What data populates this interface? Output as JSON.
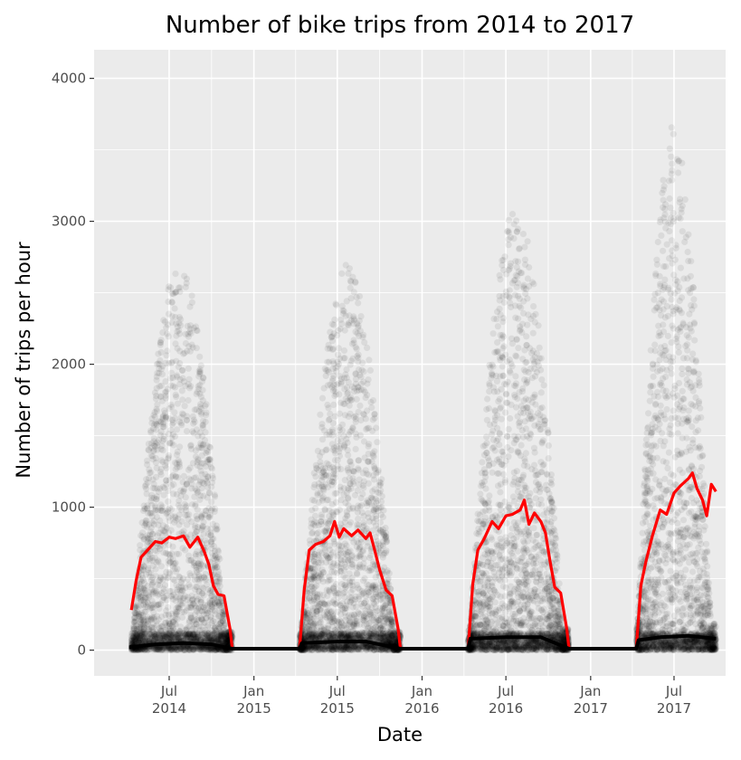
{
  "chart_data": {
    "type": "scatter",
    "title": "Number of bike trips from 2014 to 2017",
    "xlabel": "Date",
    "ylabel": "Number of trips per hour",
    "ylim": [
      -180,
      4200
    ],
    "xlim": [
      "2014-01-19",
      "2017-10-21"
    ],
    "y_ticks": [
      "0",
      "1000",
      "2000",
      "3000",
      "4000"
    ],
    "y_tick_values": [
      0,
      1000,
      2000,
      3000,
      4000
    ],
    "x_ticks": [
      {
        "date": "2014-07-01",
        "line1": "Jul",
        "line2": "2014"
      },
      {
        "date": "2015-01-01",
        "line1": "Jan",
        "line2": "2015"
      },
      {
        "date": "2015-07-01",
        "line1": "Jul",
        "line2": "2015"
      },
      {
        "date": "2016-01-01",
        "line1": "Jan",
        "line2": "2016"
      },
      {
        "date": "2016-07-01",
        "line1": "Jul",
        "line2": "2016"
      },
      {
        "date": "2017-01-01",
        "line1": "Jan",
        "line2": "2017"
      },
      {
        "date": "2017-07-01",
        "line1": "Jul",
        "line2": "2017"
      }
    ],
    "grid": true,
    "seasons": [
      {
        "start": "2014-04-10",
        "end": "2014-11-15",
        "peak": 2700,
        "max": 2860,
        "mean": 780
      },
      {
        "start": "2015-04-10",
        "end": "2015-11-15",
        "peak": 2700,
        "max": 2830,
        "mean": 820
      },
      {
        "start": "2016-04-10",
        "end": "2016-11-15",
        "peak": 3100,
        "max": 3200,
        "mean": 930
      },
      {
        "start": "2017-04-10",
        "end": "2017-09-30",
        "peak": 3700,
        "max": 3930,
        "mean": 1120
      }
    ],
    "series": [
      {
        "type": "line",
        "color": "#ff0000",
        "points": [
          [
            "2014-04-10",
            280
          ],
          [
            "2014-04-20",
            480
          ],
          [
            "2014-05-01",
            650
          ],
          [
            "2014-05-15",
            700
          ],
          [
            "2014-06-01",
            760
          ],
          [
            "2014-06-15",
            750
          ],
          [
            "2014-07-01",
            790
          ],
          [
            "2014-07-15",
            780
          ],
          [
            "2014-08-01",
            800
          ],
          [
            "2014-08-15",
            720
          ],
          [
            "2014-09-01",
            790
          ],
          [
            "2014-09-15",
            690
          ],
          [
            "2014-09-25",
            600
          ],
          [
            "2014-10-05",
            450
          ],
          [
            "2014-10-15",
            390
          ],
          [
            "2014-10-28",
            380
          ],
          [
            "2014-11-10",
            150
          ],
          [
            "2014-11-15",
            10
          ],
          [
            "2015-04-10",
            10
          ],
          [
            "2015-04-20",
            420
          ],
          [
            "2015-05-01",
            700
          ],
          [
            "2015-05-15",
            740
          ],
          [
            "2015-06-01",
            760
          ],
          [
            "2015-06-15",
            800
          ],
          [
            "2015-06-25",
            900
          ],
          [
            "2015-07-05",
            790
          ],
          [
            "2015-07-15",
            850
          ],
          [
            "2015-08-01",
            800
          ],
          [
            "2015-08-15",
            840
          ],
          [
            "2015-09-01",
            780
          ],
          [
            "2015-09-10",
            820
          ],
          [
            "2015-09-20",
            700
          ],
          [
            "2015-10-01",
            560
          ],
          [
            "2015-10-15",
            420
          ],
          [
            "2015-10-28",
            380
          ],
          [
            "2015-11-10",
            150
          ],
          [
            "2015-11-15",
            10
          ],
          [
            "2016-04-10",
            10
          ],
          [
            "2016-04-20",
            460
          ],
          [
            "2016-05-01",
            700
          ],
          [
            "2016-05-15",
            780
          ],
          [
            "2016-06-01",
            900
          ],
          [
            "2016-06-15",
            850
          ],
          [
            "2016-07-01",
            940
          ],
          [
            "2016-07-15",
            950
          ],
          [
            "2016-08-01",
            980
          ],
          [
            "2016-08-10",
            1050
          ],
          [
            "2016-08-20",
            880
          ],
          [
            "2016-09-01",
            960
          ],
          [
            "2016-09-15",
            900
          ],
          [
            "2016-09-25",
            820
          ],
          [
            "2016-10-05",
            620
          ],
          [
            "2016-10-15",
            440
          ],
          [
            "2016-10-28",
            400
          ],
          [
            "2016-11-10",
            150
          ],
          [
            "2016-11-15",
            10
          ],
          [
            "2017-04-10",
            10
          ],
          [
            "2017-04-20",
            450
          ],
          [
            "2017-05-01",
            620
          ],
          [
            "2017-05-15",
            800
          ],
          [
            "2017-06-01",
            980
          ],
          [
            "2017-06-15",
            950
          ],
          [
            "2017-07-01",
            1100
          ],
          [
            "2017-07-15",
            1150
          ],
          [
            "2017-08-01",
            1200
          ],
          [
            "2017-08-10",
            1240
          ],
          [
            "2017-08-20",
            1130
          ],
          [
            "2017-09-01",
            1050
          ],
          [
            "2017-09-10",
            940
          ],
          [
            "2017-09-20",
            1160
          ],
          [
            "2017-09-30",
            1110
          ]
        ]
      },
      {
        "type": "line",
        "color": "#000000",
        "points": [
          [
            "2014-04-05",
            20
          ],
          [
            "2014-06-01",
            40
          ],
          [
            "2014-08-01",
            50
          ],
          [
            "2014-10-01",
            40
          ],
          [
            "2014-11-15",
            10
          ],
          [
            "2015-04-10",
            10
          ],
          [
            "2015-04-15",
            50
          ],
          [
            "2015-07-01",
            60
          ],
          [
            "2015-09-01",
            60
          ],
          [
            "2015-11-15",
            10
          ],
          [
            "2016-04-10",
            10
          ],
          [
            "2016-04-15",
            80
          ],
          [
            "2016-07-01",
            90
          ],
          [
            "2016-09-15",
            90
          ],
          [
            "2016-11-15",
            10
          ],
          [
            "2017-04-10",
            10
          ],
          [
            "2017-04-15",
            70
          ],
          [
            "2017-06-01",
            90
          ],
          [
            "2017-08-01",
            100
          ],
          [
            "2017-09-30",
            80
          ]
        ]
      }
    ]
  }
}
